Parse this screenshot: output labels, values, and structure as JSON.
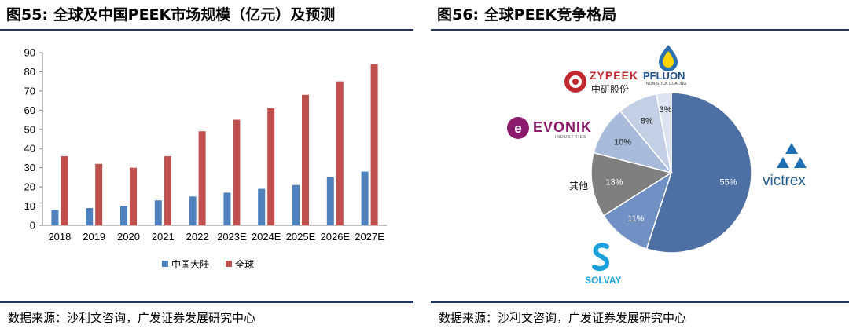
{
  "left": {
    "title": "图55:  全球及中国PEEK市场规模（亿元）及预测",
    "source": "数据来源：沙利文咨询，广发证券发展研究中心"
  },
  "right": {
    "title": "图56:  全球PEEK竞争格局",
    "source": "数据来源：沙利文咨询，广发证券发展研究中心",
    "brands": {
      "zypeek": "ZYPEEK",
      "zypeek_sub": "中研股份",
      "pfluon": "PFLUON",
      "pfluon_sub": "NON-STICK COATING",
      "evonik": "EVONIK",
      "evonik_sub": "INDUSTRIES",
      "victrex": "victrex",
      "solvay": "SOLVAY"
    }
  },
  "colors": {
    "china": "#4f81bd",
    "global": "#c0504d",
    "rule": "#1f3864",
    "pie": [
      "#4e6fa3",
      "#7190c4",
      "#7f7f7f",
      "#a8bbdb",
      "#c3cfe5",
      "#dde4f0"
    ],
    "victrex_blue": "#1f6fb5",
    "evonik_purple": "#8b1a6b",
    "zypeek_red": "#c0282d"
  },
  "chart_data": [
    {
      "type": "bar",
      "categories": [
        "2018",
        "2019",
        "2020",
        "2021",
        "2022",
        "2023E",
        "2024E",
        "2025E",
        "2026E",
        "2027E"
      ],
      "series": [
        {
          "name": "中国大陆",
          "values": [
            8,
            9,
            10,
            13,
            15,
            17,
            19,
            21,
            25,
            28
          ]
        },
        {
          "name": "全球",
          "values": [
            36,
            32,
            30,
            36,
            49,
            55,
            61,
            68,
            75,
            84
          ]
        }
      ],
      "ylim": [
        0,
        90
      ],
      "yticks": [
        0,
        10,
        20,
        30,
        40,
        50,
        60,
        70,
        80,
        90
      ],
      "legend": "bottom",
      "grid": false
    },
    {
      "type": "pie",
      "slices": [
        {
          "label": "victrex",
          "value": 55,
          "text": "55%"
        },
        {
          "label": "SOLVAY",
          "value": 11,
          "text": "11%"
        },
        {
          "label": "其他",
          "value": 13,
          "text": "13%"
        },
        {
          "label": "EVONIK",
          "value": 10,
          "text": "10%"
        },
        {
          "label": "中研股份",
          "value": 8,
          "text": "8%"
        },
        {
          "label": "PFLUON",
          "value": 3,
          "text": "3%"
        }
      ]
    }
  ]
}
